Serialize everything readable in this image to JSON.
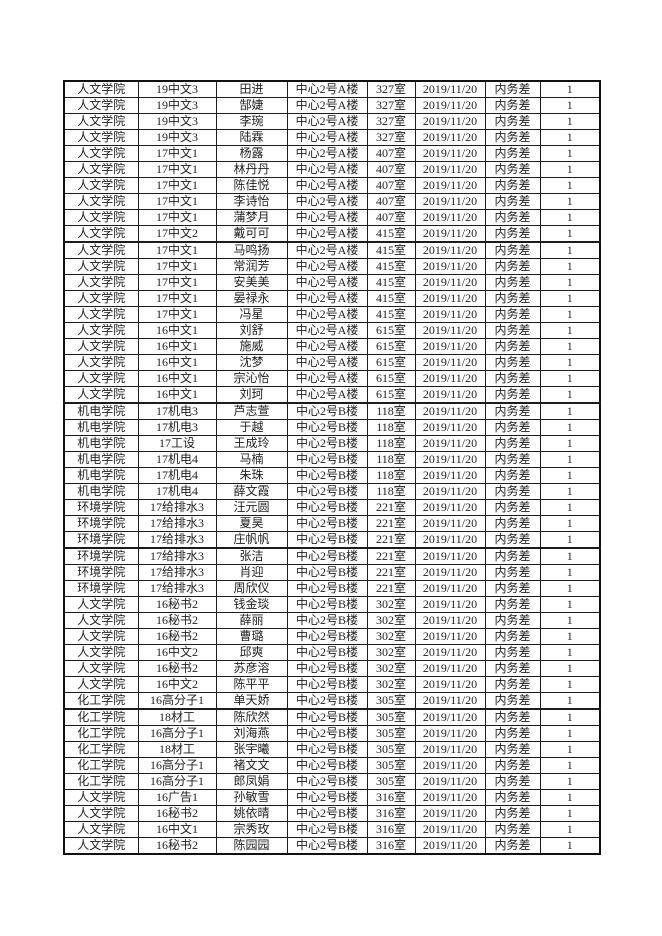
{
  "page": {
    "background_color": "#ffffff",
    "table_border_color": "#111111"
  },
  "table": {
    "columns": [
      "college",
      "class",
      "name",
      "building",
      "room",
      "date",
      "issue",
      "count"
    ],
    "group_separator_after_rows": [
      10,
      20,
      29,
      39
    ],
    "rows": [
      [
        "人文学院",
        "19中文3",
        "田进",
        "中心2号A楼",
        "327室",
        "2019/11/20",
        "内务差",
        "1"
      ],
      [
        "人文学院",
        "19中文3",
        "郜婕",
        "中心2号A楼",
        "327室",
        "2019/11/20",
        "内务差",
        "1"
      ],
      [
        "人文学院",
        "19中文3",
        "李琬",
        "中心2号A楼",
        "327室",
        "2019/11/20",
        "内务差",
        "1"
      ],
      [
        "人文学院",
        "19中文3",
        "陆霖",
        "中心2号A楼",
        "327室",
        "2019/11/20",
        "内务差",
        "1"
      ],
      [
        "人文学院",
        "17中文1",
        "杨露",
        "中心2号A楼",
        "407室",
        "2019/11/20",
        "内务差",
        "1"
      ],
      [
        "人文学院",
        "17中文1",
        "林丹丹",
        "中心2号A楼",
        "407室",
        "2019/11/20",
        "内务差",
        "1"
      ],
      [
        "人文学院",
        "17中文1",
        "陈佳悦",
        "中心2号A楼",
        "407室",
        "2019/11/20",
        "内务差",
        "1"
      ],
      [
        "人文学院",
        "17中文1",
        "李诗怡",
        "中心2号A楼",
        "407室",
        "2019/11/20",
        "内务差",
        "1"
      ],
      [
        "人文学院",
        "17中文1",
        "蒲梦月",
        "中心2号A楼",
        "407室",
        "2019/11/20",
        "内务差",
        "1"
      ],
      [
        "人文学院",
        "17中文2",
        "戴可可",
        "中心2号A楼",
        "415室",
        "2019/11/20",
        "内务差",
        "1"
      ],
      [
        "人文学院",
        "17中文1",
        "马鸣扬",
        "中心2号A楼",
        "415室",
        "2019/11/20",
        "内务差",
        "1"
      ],
      [
        "人文学院",
        "17中文1",
        "常润芳",
        "中心2号A楼",
        "415室",
        "2019/11/20",
        "内务差",
        "1"
      ],
      [
        "人文学院",
        "17中文1",
        "安美美",
        "中心2号A楼",
        "415室",
        "2019/11/20",
        "内务差",
        "1"
      ],
      [
        "人文学院",
        "17中文1",
        "晏禄永",
        "中心2号A楼",
        "415室",
        "2019/11/20",
        "内务差",
        "1"
      ],
      [
        "人文学院",
        "17中文1",
        "冯星",
        "中心2号A楼",
        "415室",
        "2019/11/20",
        "内务差",
        "1"
      ],
      [
        "人文学院",
        "16中文1",
        "刘舒",
        "中心2号A楼",
        "615室",
        "2019/11/20",
        "内务差",
        "1"
      ],
      [
        "人文学院",
        "16中文1",
        "施威",
        "中心2号A楼",
        "615室",
        "2019/11/20",
        "内务差",
        "1"
      ],
      [
        "人文学院",
        "16中文1",
        "沈梦",
        "中心2号A楼",
        "615室",
        "2019/11/20",
        "内务差",
        "1"
      ],
      [
        "人文学院",
        "16中文1",
        "宗沁怡",
        "中心2号A楼",
        "615室",
        "2019/11/20",
        "内务差",
        "1"
      ],
      [
        "人文学院",
        "16中文1",
        "刘珂",
        "中心2号A楼",
        "615室",
        "2019/11/20",
        "内务差",
        "1"
      ],
      [
        "机电学院",
        "17机电3",
        "芦志萱",
        "中心2号B楼",
        "118室",
        "2019/11/20",
        "内务差",
        "1"
      ],
      [
        "机电学院",
        "17机电3",
        "于越",
        "中心2号B楼",
        "118室",
        "2019/11/20",
        "内务差",
        "1"
      ],
      [
        "机电学院",
        "17工设",
        "王成玲",
        "中心2号B楼",
        "118室",
        "2019/11/20",
        "内务差",
        "1"
      ],
      [
        "机电学院",
        "17机电4",
        "马楠",
        "中心2号B楼",
        "118室",
        "2019/11/20",
        "内务差",
        "1"
      ],
      [
        "机电学院",
        "17机电4",
        "朱珠",
        "中心2号B楼",
        "118室",
        "2019/11/20",
        "内务差",
        "1"
      ],
      [
        "机电学院",
        "17机电4",
        "薛文霞",
        "中心2号B楼",
        "118室",
        "2019/11/20",
        "内务差",
        "1"
      ],
      [
        "环境学院",
        "17给排水3",
        "汪元圆",
        "中心2号B楼",
        "221室",
        "2019/11/20",
        "内务差",
        "1"
      ],
      [
        "环境学院",
        "17给排水3",
        "夏昊",
        "中心2号B楼",
        "221室",
        "2019/11/20",
        "内务差",
        "1"
      ],
      [
        "环境学院",
        "17给排水3",
        "庄帆帆",
        "中心2号B楼",
        "221室",
        "2019/11/20",
        "内务差",
        "1"
      ],
      [
        "环境学院",
        "17给排水3",
        "张洁",
        "中心2号B楼",
        "221室",
        "2019/11/20",
        "内务差",
        "1"
      ],
      [
        "环境学院",
        "17给排水3",
        "肖迎",
        "中心2号B楼",
        "221室",
        "2019/11/20",
        "内务差",
        "1"
      ],
      [
        "环境学院",
        "17给排水3",
        "周欣仪",
        "中心2号B楼",
        "221室",
        "2019/11/20",
        "内务差",
        "1"
      ],
      [
        "人文学院",
        "16秘书2",
        "钱金琰",
        "中心2号B楼",
        "302室",
        "2019/11/20",
        "内务差",
        "1"
      ],
      [
        "人文学院",
        "16秘书2",
        "薛丽",
        "中心2号B楼",
        "302室",
        "2019/11/20",
        "内务差",
        "1"
      ],
      [
        "人文学院",
        "16秘书2",
        "曹璐",
        "中心2号B楼",
        "302室",
        "2019/11/20",
        "内务差",
        "1"
      ],
      [
        "人文学院",
        "16中文2",
        "邱爽",
        "中心2号B楼",
        "302室",
        "2019/11/20",
        "内务差",
        "1"
      ],
      [
        "人文学院",
        "16秘书2",
        "苏彦溶",
        "中心2号B楼",
        "302室",
        "2019/11/20",
        "内务差",
        "1"
      ],
      [
        "人文学院",
        "16中文2",
        "陈平平",
        "中心2号B楼",
        "302室",
        "2019/11/20",
        "内务差",
        "1"
      ],
      [
        "化工学院",
        "16高分子1",
        "单天娇",
        "中心2号B楼",
        "305室",
        "2019/11/20",
        "内务差",
        "1"
      ],
      [
        "化工学院",
        "18材工",
        "陈欣然",
        "中心2号B楼",
        "305室",
        "2019/11/20",
        "内务差",
        "1"
      ],
      [
        "化工学院",
        "16高分子1",
        "刘海燕",
        "中心2号B楼",
        "305室",
        "2019/11/20",
        "内务差",
        "1"
      ],
      [
        "化工学院",
        "18材工",
        "张宇曦",
        "中心2号B楼",
        "305室",
        "2019/11/20",
        "内务差",
        "1"
      ],
      [
        "化工学院",
        "16高分子1",
        "褚文文",
        "中心2号B楼",
        "305室",
        "2019/11/20",
        "内务差",
        "1"
      ],
      [
        "化工学院",
        "16高分子1",
        "郎凤娟",
        "中心2号B楼",
        "305室",
        "2019/11/20",
        "内务差",
        "1"
      ],
      [
        "人文学院",
        "16广告1",
        "孙敏雪",
        "中心2号B楼",
        "316室",
        "2019/11/20",
        "内务差",
        "1"
      ],
      [
        "人文学院",
        "16秘书2",
        "姚依晴",
        "中心2号B楼",
        "316室",
        "2019/11/20",
        "内务差",
        "1"
      ],
      [
        "人文学院",
        "16中文1",
        "宗秀玫",
        "中心2号B楼",
        "316室",
        "2019/11/20",
        "内务差",
        "1"
      ],
      [
        "人文学院",
        "16秘书2",
        "陈园园",
        "中心2号B楼",
        "316室",
        "2019/11/20",
        "内务差",
        "1"
      ]
    ]
  }
}
